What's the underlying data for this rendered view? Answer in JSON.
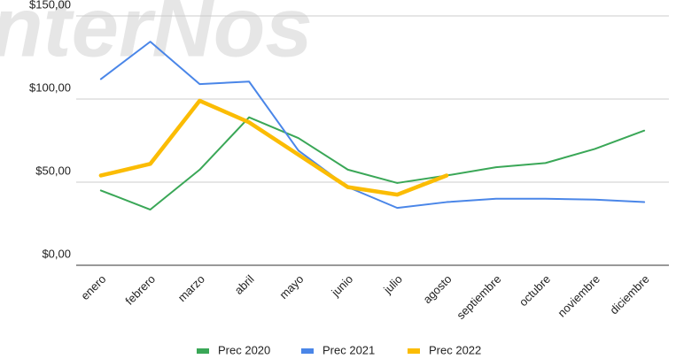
{
  "chart_data": {
    "type": "line",
    "watermark": "nterNos",
    "categories": [
      "enero",
      "febrero",
      "marzo",
      "abril",
      "mayo",
      "junio",
      "julio",
      "agosto",
      "septiembre",
      "octubre",
      "noviembre",
      "diciembre"
    ],
    "series": [
      {
        "name": "Prec 2020",
        "color": "#3aa757",
        "values": [
          45,
          33.5,
          57.5,
          89,
          76.5,
          57.5,
          49.5,
          54,
          59,
          61.5,
          70,
          81
        ]
      },
      {
        "name": "Prec 2021",
        "color": "#4a86e8",
        "values": [
          112,
          134.5,
          109,
          110.5,
          69,
          47,
          34.5,
          38,
          40,
          40,
          39.5,
          38
        ]
      },
      {
        "name": "Prec 2022",
        "color": "#fbbc04",
        "values": [
          54,
          61,
          99,
          86,
          66.5,
          47,
          42.5,
          54,
          null,
          null,
          null,
          null
        ]
      }
    ],
    "ylim": [
      0,
      150
    ],
    "yticks": [
      {
        "value": 0,
        "label": "$0,00"
      },
      {
        "value": 50,
        "label": "$50,00"
      },
      {
        "value": 100,
        "label": "$100,00"
      },
      {
        "value": 150,
        "label": "$150,00"
      }
    ],
    "grid": true,
    "legend": "bottom"
  }
}
